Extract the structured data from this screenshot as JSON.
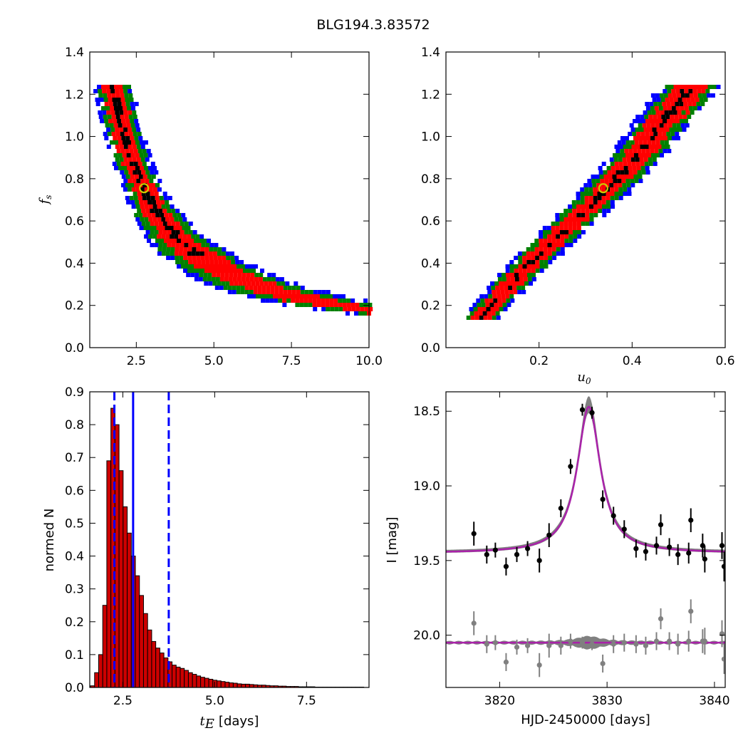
{
  "figure_title": "BLG194.3.83572",
  "chart_data": [
    {
      "type": "heatmap",
      "panel": "top-left",
      "xlabel": "",
      "ylabel": "f_s",
      "ylabel_main": "f",
      "ylabel_sub": "s",
      "xlim": [
        1.0,
        10.0
      ],
      "ylim": [
        0.0,
        1.4
      ],
      "xticks": [
        "2.5",
        "5.0",
        "7.5",
        "10.0"
      ],
      "yticks": [
        "0.0",
        "0.2",
        "0.4",
        "0.6",
        "0.8",
        "1.0",
        "1.2",
        "1.4"
      ],
      "colors": {
        "outer": "#0000ff",
        "mid": "#008000",
        "inner": "#ff0000",
        "core": "#000000"
      },
      "relation": "fs approx 2.05 / (tE - 0.08)^1.04, fs from 0.14 to 1.24",
      "ridge": [
        [
          1.75,
          1.24
        ],
        [
          2.2,
          1.0
        ],
        [
          2.75,
          0.76
        ],
        [
          3.5,
          0.55
        ],
        [
          4.3,
          0.4
        ],
        [
          5.5,
          0.28
        ],
        [
          7.0,
          0.19
        ],
        [
          9.0,
          0.14
        ]
      ],
      "best_fit": {
        "x": 2.75,
        "y": 0.755,
        "marker_color": "#cccc00"
      }
    },
    {
      "type": "heatmap",
      "panel": "top-right",
      "xlabel": "u_0",
      "xlabel_main": "u",
      "xlabel_sub": "0",
      "ylabel": "",
      "xlim": [
        0.0,
        0.6
      ],
      "ylim": [
        0.0,
        1.4
      ],
      "xticks": [
        "0.2",
        "0.4",
        "0.6"
      ],
      "yticks": [
        "0.0",
        "0.2",
        "0.4",
        "0.6",
        "0.8",
        "1.0",
        "1.2",
        "1.4"
      ],
      "colors": {
        "outer": "#0000ff",
        "mid": "#008000",
        "inner": "#ff0000",
        "core": "#000000"
      },
      "ridge": [
        [
          0.07,
          0.15
        ],
        [
          0.15,
          0.35
        ],
        [
          0.22,
          0.5
        ],
        [
          0.3,
          0.67
        ],
        [
          0.34,
          0.755
        ],
        [
          0.4,
          0.9
        ],
        [
          0.47,
          1.1
        ],
        [
          0.52,
          1.24
        ]
      ],
      "best_fit": {
        "x": 0.338,
        "y": 0.755,
        "marker_color": "#cccc00"
      }
    },
    {
      "type": "bar",
      "panel": "bottom-left",
      "xlabel": "t_E [days]",
      "xlabel_main": "t",
      "xlabel_sub": "E",
      "xlabel_unit": "[days]",
      "ylabel": "normed N",
      "xlim": [
        1.6,
        9.2
      ],
      "ylim": [
        0.0,
        0.9
      ],
      "xticks": [
        "2.5",
        "5.0",
        "7.5"
      ],
      "yticks": [
        "0.0",
        "0.1",
        "0.2",
        "0.3",
        "0.4",
        "0.5",
        "0.6",
        "0.7",
        "0.8",
        "0.9"
      ],
      "bin_start": 1.62,
      "bin_width": 0.111,
      "values": [
        0.005,
        0.045,
        0.1,
        0.25,
        0.69,
        0.85,
        0.8,
        0.66,
        0.55,
        0.47,
        0.4,
        0.34,
        0.28,
        0.225,
        0.175,
        0.14,
        0.12,
        0.105,
        0.09,
        0.078,
        0.068,
        0.062,
        0.058,
        0.052,
        0.045,
        0.04,
        0.035,
        0.031,
        0.028,
        0.025,
        0.022,
        0.02,
        0.018,
        0.016,
        0.014,
        0.013,
        0.011,
        0.01,
        0.01,
        0.009,
        0.008,
        0.007,
        0.007,
        0.006,
        0.005,
        0.005,
        0.004,
        0.004,
        0.003,
        0.003,
        0.003,
        0.002,
        0.002,
        0.002,
        0.002,
        0.001,
        0.001,
        0.001,
        0.001,
        0.001,
        0.001,
        0.001,
        0.001,
        0.001,
        0.001,
        0.001,
        0.001
      ],
      "bar_color": "#cc0000",
      "vlines": [
        {
          "x": 2.27,
          "style": "dashed",
          "color": "#0000ff"
        },
        {
          "x": 2.78,
          "style": "solid",
          "color": "#0000ff"
        },
        {
          "x": 3.75,
          "style": "dashed",
          "color": "#0000ff"
        }
      ]
    },
    {
      "type": "line",
      "panel": "bottom-right",
      "xlabel": "HJD-2450000 [days]",
      "ylabel": "I [mag]",
      "xlim": [
        3815.0,
        3841.0
      ],
      "ylim": [
        20.35,
        18.37
      ],
      "y_inverted": true,
      "xticks": [
        "3820",
        "3830",
        "3840"
      ],
      "yticks": [
        "18.5",
        "19.0",
        "19.5",
        "20.0"
      ],
      "model": {
        "t0": 3828.3,
        "baseline_mag": 19.45,
        "peak_mag": 18.47,
        "width": 1.3
      },
      "residual_offset_mag": 0.6,
      "series": [
        {
          "name": "data",
          "color": "#000000",
          "points": [
            {
              "x": 3817.6,
              "y": 19.32,
              "err": 0.08
            },
            {
              "x": 3818.8,
              "y": 19.46,
              "err": 0.06
            },
            {
              "x": 3819.6,
              "y": 19.43,
              "err": 0.05
            },
            {
              "x": 3820.6,
              "y": 19.54,
              "err": 0.06
            },
            {
              "x": 3821.6,
              "y": 19.46,
              "err": 0.05
            },
            {
              "x": 3822.6,
              "y": 19.42,
              "err": 0.05
            },
            {
              "x": 3823.7,
              "y": 19.5,
              "err": 0.08
            },
            {
              "x": 3824.6,
              "y": 19.33,
              "err": 0.08
            },
            {
              "x": 3825.7,
              "y": 19.15,
              "err": 0.06
            },
            {
              "x": 3826.6,
              "y": 18.87,
              "err": 0.05
            },
            {
              "x": 3827.7,
              "y": 18.49,
              "err": 0.04
            },
            {
              "x": 3828.6,
              "y": 18.51,
              "err": 0.04
            },
            {
              "x": 3829.6,
              "y": 19.09,
              "err": 0.06
            },
            {
              "x": 3830.6,
              "y": 19.2,
              "err": 0.06
            },
            {
              "x": 3831.6,
              "y": 19.29,
              "err": 0.06
            },
            {
              "x": 3832.7,
              "y": 19.42,
              "err": 0.06
            },
            {
              "x": 3833.6,
              "y": 19.44,
              "err": 0.06
            },
            {
              "x": 3834.6,
              "y": 19.4,
              "err": 0.06
            },
            {
              "x": 3835.0,
              "y": 19.26,
              "err": 0.07
            },
            {
              "x": 3835.8,
              "y": 19.41,
              "err": 0.06
            },
            {
              "x": 3836.6,
              "y": 19.46,
              "err": 0.07
            },
            {
              "x": 3837.6,
              "y": 19.45,
              "err": 0.07
            },
            {
              "x": 3837.8,
              "y": 19.23,
              "err": 0.08
            },
            {
              "x": 3838.9,
              "y": 19.4,
              "err": 0.08
            },
            {
              "x": 3839.1,
              "y": 19.49,
              "err": 0.09
            },
            {
              "x": 3840.7,
              "y": 19.4,
              "err": 0.09
            },
            {
              "x": 3840.9,
              "y": 19.54,
              "err": 0.1
            }
          ]
        },
        {
          "name": "residuals",
          "color": "#808080",
          "values_note": "residuals plotted about a baseline at I = 20.05",
          "points": [
            {
              "x": 3817.6,
              "y": 19.92,
              "err": 0.08
            },
            {
              "x": 3818.8,
              "y": 20.06,
              "err": 0.06
            },
            {
              "x": 3819.6,
              "y": 20.05,
              "err": 0.05
            },
            {
              "x": 3820.6,
              "y": 20.18,
              "err": 0.06
            },
            {
              "x": 3821.6,
              "y": 20.08,
              "err": 0.05
            },
            {
              "x": 3822.6,
              "y": 20.07,
              "err": 0.05
            },
            {
              "x": 3823.7,
              "y": 20.2,
              "err": 0.08
            },
            {
              "x": 3824.6,
              "y": 20.07,
              "err": 0.08
            },
            {
              "x": 3825.7,
              "y": 20.07,
              "err": 0.06
            },
            {
              "x": 3826.6,
              "y": 20.04,
              "err": 0.05
            },
            {
              "x": 3827.7,
              "y": 20.05,
              "err": 0.04
            },
            {
              "x": 3828.6,
              "y": 20.06,
              "err": 0.04
            },
            {
              "x": 3829.6,
              "y": 20.19,
              "err": 0.06
            },
            {
              "x": 3830.6,
              "y": 20.06,
              "err": 0.06
            },
            {
              "x": 3831.6,
              "y": 20.05,
              "err": 0.06
            },
            {
              "x": 3832.7,
              "y": 20.06,
              "err": 0.06
            },
            {
              "x": 3833.6,
              "y": 20.07,
              "err": 0.06
            },
            {
              "x": 3834.6,
              "y": 20.04,
              "err": 0.06
            },
            {
              "x": 3835.0,
              "y": 19.89,
              "err": 0.07
            },
            {
              "x": 3835.8,
              "y": 20.04,
              "err": 0.06
            },
            {
              "x": 3836.6,
              "y": 20.06,
              "err": 0.07
            },
            {
              "x": 3837.6,
              "y": 20.04,
              "err": 0.07
            },
            {
              "x": 3837.8,
              "y": 19.84,
              "err": 0.08
            },
            {
              "x": 3838.9,
              "y": 20.04,
              "err": 0.08
            },
            {
              "x": 3839.1,
              "y": 20.04,
              "err": 0.09
            },
            {
              "x": 3840.7,
              "y": 19.99,
              "err": 0.09
            },
            {
              "x": 3840.9,
              "y": 20.16,
              "err": 0.1
            }
          ]
        }
      ],
      "colors": {
        "model": "#aa22aa",
        "envelope": "#808080"
      }
    }
  ]
}
